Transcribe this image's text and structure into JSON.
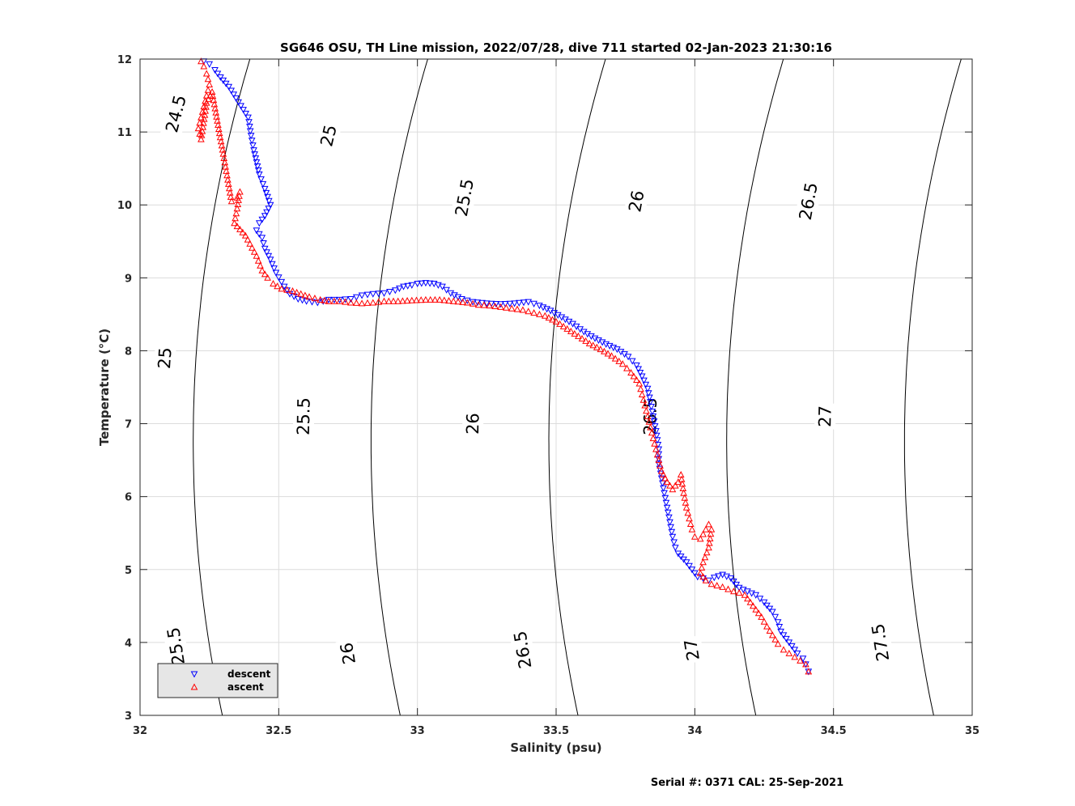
{
  "chart_data": {
    "type": "scatter",
    "title": "SG646 OSU, TH Line mission, 2022/07/28, dive 711 started 02-Jan-2023 21:30:16",
    "xlabel": "Salinity (psu)",
    "ylabel": "Temperature (°C)",
    "xlim": [
      32,
      35
    ],
    "ylim": [
      3,
      12
    ],
    "xticks": [
      "32",
      "32.5",
      "33",
      "33.5",
      "34",
      "34.5",
      "35"
    ],
    "yticks": [
      "3",
      "4",
      "5",
      "6",
      "7",
      "8",
      "9",
      "10",
      "11",
      "12"
    ],
    "grid": true,
    "legend_position": "bottom-left",
    "footer": "Serial #: 0371  CAL: 25-Sep-2021",
    "contours": {
      "levels": [
        24.5,
        25,
        25.5,
        26,
        26.5,
        27,
        27.5
      ],
      "labels": [
        {
          "text": "24.5",
          "s": 32.13,
          "t": 11.25
        },
        {
          "text": "25",
          "s": 32.68,
          "t": 10.95
        },
        {
          "text": "25.5",
          "s": 33.17,
          "t": 10.1
        },
        {
          "text": "26",
          "s": 33.79,
          "t": 10.05
        },
        {
          "text": "26.5",
          "s": 34.41,
          "t": 10.05
        },
        {
          "text": "25",
          "s": 32.09,
          "t": 7.9
        },
        {
          "text": "25.5",
          "s": 32.59,
          "t": 7.1
        },
        {
          "text": "26",
          "s": 33.2,
          "t": 7.0
        },
        {
          "text": "26.5",
          "s": 33.84,
          "t": 7.1
        },
        {
          "text": "27",
          "s": 34.47,
          "t": 7.1
        },
        {
          "text": "25.5",
          "s": 32.13,
          "t": 3.95
        },
        {
          "text": "26",
          "s": 32.75,
          "t": 3.85
        },
        {
          "text": "26.5",
          "s": 33.38,
          "t": 3.9
        },
        {
          "text": "27",
          "s": 33.99,
          "t": 3.9
        },
        {
          "text": "27.5",
          "s": 34.67,
          "t": 4.0
        }
      ]
    },
    "series": [
      {
        "name": "descent",
        "color": "#0000ff",
        "marker": "triangle-down",
        "x": [
          32.23,
          32.25,
          32.27,
          32.29,
          32.32,
          32.39,
          32.4,
          32.41,
          32.43,
          32.45,
          32.47,
          32.45,
          32.43,
          32.42,
          32.44,
          32.45,
          32.47,
          32.49,
          32.52,
          32.54,
          32.57,
          32.6,
          32.64,
          32.68,
          32.72,
          32.76,
          32.8,
          32.84,
          32.88,
          32.92,
          32.95,
          32.98,
          33.0,
          33.03,
          33.06,
          33.09,
          33.12,
          33.16,
          33.2,
          33.25,
          33.3,
          33.35,
          33.4,
          33.44,
          33.48,
          33.52,
          33.56,
          33.6,
          33.64,
          33.68,
          33.72,
          33.76,
          33.79,
          33.81,
          33.83,
          33.84,
          33.85,
          33.86,
          33.87,
          33.87,
          33.88,
          33.89,
          33.9,
          33.91,
          33.92,
          33.93,
          33.94,
          33.95,
          33.96,
          33.97,
          33.98,
          33.99,
          34.0,
          34.01,
          34.03,
          34.05,
          34.07,
          34.1,
          34.13,
          34.16,
          34.19,
          34.22,
          34.25,
          34.28,
          34.3,
          34.31,
          34.33,
          34.35,
          34.37,
          34.39,
          34.4,
          34.41
        ],
        "y": [
          11.97,
          11.93,
          11.85,
          11.75,
          11.62,
          11.2,
          10.95,
          10.75,
          10.42,
          10.22,
          10.0,
          9.85,
          9.75,
          9.65,
          9.55,
          9.4,
          9.25,
          9.07,
          8.88,
          8.78,
          8.71,
          8.68,
          8.66,
          8.7,
          8.7,
          8.71,
          8.76,
          8.78,
          8.79,
          8.83,
          8.88,
          8.9,
          8.92,
          8.93,
          8.92,
          8.88,
          8.79,
          8.71,
          8.67,
          8.65,
          8.64,
          8.65,
          8.67,
          8.62,
          8.55,
          8.46,
          8.37,
          8.26,
          8.17,
          8.09,
          8.02,
          7.92,
          7.8,
          7.65,
          7.48,
          7.3,
          7.1,
          6.9,
          6.65,
          6.45,
          6.25,
          6.05,
          5.85,
          5.65,
          5.45,
          5.3,
          5.22,
          5.18,
          5.14,
          5.1,
          5.05,
          5.0,
          4.95,
          4.9,
          4.88,
          4.85,
          4.89,
          4.93,
          4.88,
          4.75,
          4.7,
          4.65,
          4.55,
          4.42,
          4.28,
          4.15,
          4.05,
          3.95,
          3.85,
          3.78,
          3.7,
          3.6
        ]
      },
      {
        "name": "ascent",
        "color": "#ff0000",
        "marker": "triangle-up",
        "x": [
          32.22,
          32.23,
          32.24,
          32.25,
          32.24,
          32.23,
          32.22,
          32.21,
          32.22,
          32.24,
          32.26,
          32.3,
          32.33,
          32.35,
          32.36,
          32.35,
          32.34,
          32.38,
          32.42,
          32.44,
          32.46,
          32.48,
          32.51,
          32.55,
          32.58,
          32.61,
          32.65,
          32.68,
          32.72,
          32.76,
          32.8,
          32.84,
          32.88,
          32.93,
          32.98,
          33.03,
          33.08,
          33.13,
          33.18,
          33.22,
          33.26,
          33.3,
          33.34,
          33.38,
          33.42,
          33.46,
          33.5,
          33.54,
          33.58,
          33.62,
          33.66,
          33.7,
          33.74,
          33.77,
          33.8,
          33.81,
          33.82,
          33.83,
          33.84,
          33.85,
          33.86,
          33.87,
          33.88,
          33.9,
          33.92,
          33.94,
          33.95,
          33.96,
          33.97,
          33.98,
          33.99,
          34.0,
          34.02,
          34.04,
          34.05,
          34.06,
          34.05,
          34.03,
          34.02,
          34.04,
          34.06,
          34.08,
          34.1,
          34.12,
          34.14,
          34.16,
          34.18,
          34.2,
          34.22,
          34.24,
          34.26,
          34.28,
          34.3,
          34.32,
          34.34,
          34.36,
          34.38,
          34.4,
          34.41
        ],
        "y": [
          11.97,
          11.9,
          11.8,
          11.65,
          11.5,
          11.35,
          11.2,
          11.05,
          10.9,
          11.4,
          11.55,
          10.7,
          10.05,
          10.1,
          10.18,
          9.95,
          9.75,
          9.58,
          9.3,
          9.1,
          9.0,
          8.92,
          8.85,
          8.82,
          8.78,
          8.74,
          8.7,
          8.68,
          8.68,
          8.66,
          8.65,
          8.66,
          8.68,
          8.68,
          8.69,
          8.7,
          8.7,
          8.68,
          8.66,
          8.63,
          8.62,
          8.6,
          8.58,
          8.56,
          8.52,
          8.48,
          8.4,
          8.3,
          8.2,
          8.1,
          8.02,
          7.93,
          7.82,
          7.7,
          7.55,
          7.4,
          7.25,
          7.1,
          6.95,
          6.8,
          6.65,
          6.5,
          6.35,
          6.2,
          6.1,
          6.2,
          6.3,
          6.05,
          5.85,
          5.7,
          5.55,
          5.45,
          5.42,
          5.55,
          5.62,
          5.55,
          5.3,
          5.1,
          4.95,
          4.85,
          4.8,
          4.78,
          4.76,
          4.73,
          4.7,
          4.68,
          4.65,
          4.55,
          4.45,
          4.35,
          4.22,
          4.1,
          3.98,
          3.9,
          3.85,
          3.8,
          3.75,
          3.7,
          3.6
        ]
      }
    ]
  }
}
